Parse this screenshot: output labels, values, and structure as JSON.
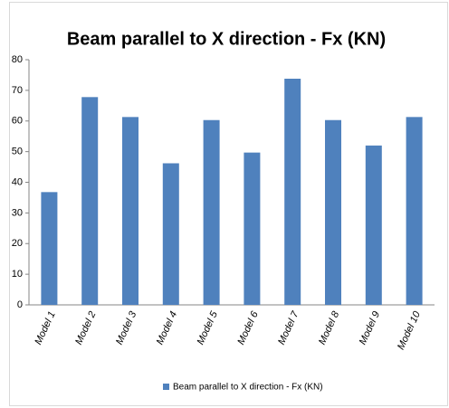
{
  "chart_data": {
    "type": "bar",
    "title": "Beam parallel to X direction - Fx (KN)",
    "categories": [
      "Model 1",
      "Model 2",
      "Model 3",
      "Model 4",
      "Model 5",
      "Model 6",
      "Model 7",
      "Model 8",
      "Model 9",
      "Model 10"
    ],
    "series": [
      {
        "name": "Beam parallel to X direction - Fx (KN)",
        "color": "#4f81bd",
        "values": [
          36.8,
          67.8,
          61.3,
          46.2,
          60.3,
          49.7,
          73.8,
          60.3,
          52.0,
          61.3
        ]
      }
    ],
    "ylim": [
      0,
      80
    ],
    "yticks": [
      0,
      10,
      20,
      30,
      40,
      50,
      60,
      70,
      80
    ],
    "grid": false,
    "legend": "bottom"
  }
}
